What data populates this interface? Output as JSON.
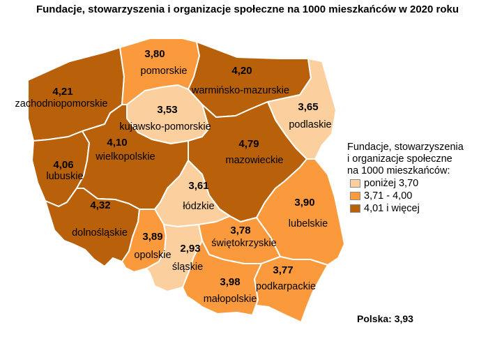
{
  "title": "Fundacje, stowarzyszenia i organizacje społeczne na 1000 mieszkańców w 2020 roku",
  "colors": {
    "low": "#fbcf9e",
    "mid": "#fb9a3c",
    "high": "#b8600a",
    "border": "#ffffff"
  },
  "legend": {
    "title_lines": [
      "Fundacje, stowarzyszenia",
      "i organizacje społeczne",
      "na 1000 mieszkańców:"
    ],
    "items": [
      {
        "label": "poniżej 3,70",
        "class": "low"
      },
      {
        "label": "3,71 - 4,00",
        "class": "mid"
      },
      {
        "label": "4,01 i więcej",
        "class": "high"
      }
    ]
  },
  "total": "Polska: 3,93",
  "regions": {
    "zachodniopomorskie": {
      "name": "zachodniopomorskie",
      "value": "4,21",
      "class": "high"
    },
    "pomorskie": {
      "name": "pomorskie",
      "value": "3,80",
      "class": "mid"
    },
    "warminsko_mazurskie": {
      "name": "warmińsko-mazurskie",
      "value": "4,20",
      "class": "high"
    },
    "podlaskie": {
      "name": "podlaskie",
      "value": "3,65",
      "class": "low"
    },
    "kujawsko_pomorskie": {
      "name": "kujawsko-pomorskie",
      "value": "3,53",
      "class": "low"
    },
    "lubuskie": {
      "name": "lubuskie",
      "value": "4,06",
      "class": "high"
    },
    "wielkopolskie": {
      "name": "wielkopolskie",
      "value": "4,10",
      "class": "high"
    },
    "mazowieckie": {
      "name": "mazowieckie",
      "value": "4,79",
      "class": "high"
    },
    "lodzkie": {
      "name": "łódzkie",
      "value": "3,61",
      "class": "low"
    },
    "lubelskie": {
      "name": "lubelskie",
      "value": "3,90",
      "class": "mid"
    },
    "dolnoslaskie": {
      "name": "dolnośląskie",
      "value": "4,32",
      "class": "high"
    },
    "opolskie": {
      "name": "opolskie",
      "value": "3,89",
      "class": "mid"
    },
    "slaskie": {
      "name": "śląskie",
      "value": "2,93",
      "class": "low"
    },
    "swietokrzyskie": {
      "name": "świętokrzyskie",
      "value": "3,78",
      "class": "mid"
    },
    "malopolskie": {
      "name": "małopolskie",
      "value": "3,98",
      "class": "mid"
    },
    "podkarpackie": {
      "name": "podkarpackie",
      "value": "3,77",
      "class": "mid"
    }
  }
}
